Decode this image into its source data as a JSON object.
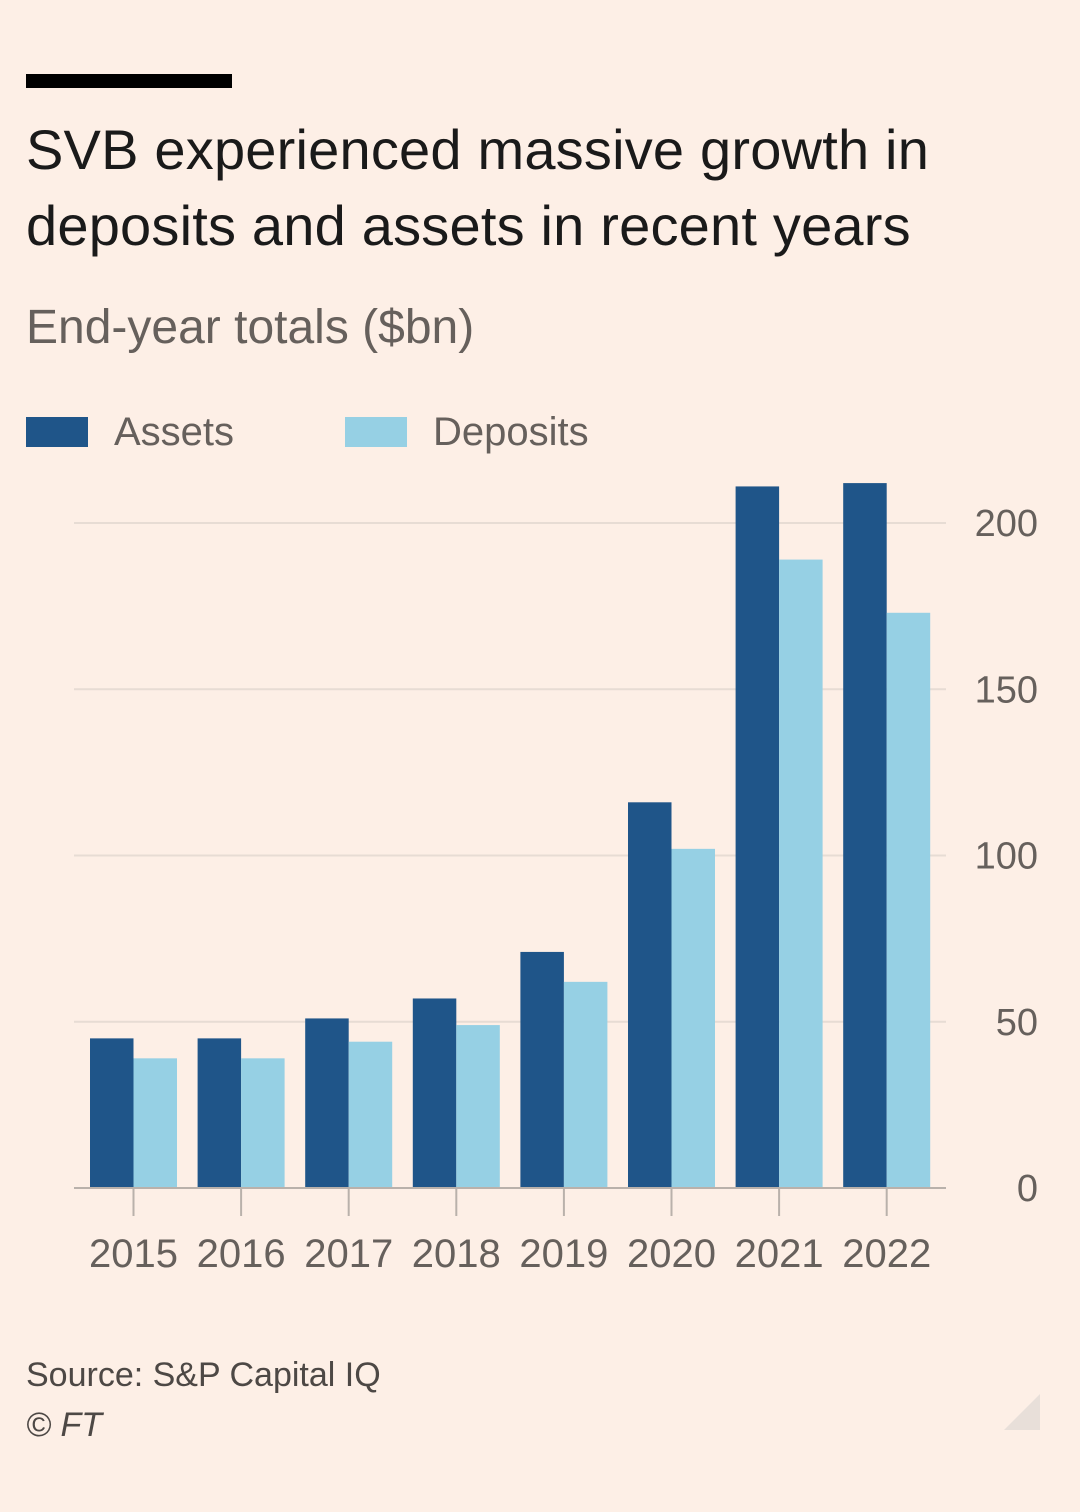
{
  "title": "SVB experienced massive growth in deposits and assets in recent years",
  "subtitle": "End-year totals ($bn)",
  "legend": [
    {
      "label": "Assets",
      "color": "#1f5589"
    },
    {
      "label": "Deposits",
      "color": "#96d0e4"
    }
  ],
  "source": "Source: S&P Capital IQ",
  "copyright": "© FT",
  "colors": {
    "background": "#fdefe6",
    "gridline": "#e7dcd4",
    "axis": "#b9b1ab",
    "tick_text": "#66605c",
    "assets": "#1f5589",
    "deposits": "#96d0e4"
  },
  "chart_data": {
    "type": "bar",
    "categories": [
      "2015",
      "2016",
      "2017",
      "2018",
      "2019",
      "2020",
      "2021",
      "2022"
    ],
    "series": [
      {
        "name": "Assets",
        "values": [
          45,
          45,
          51,
          57,
          71,
          116,
          211,
          212
        ]
      },
      {
        "name": "Deposits",
        "values": [
          39,
          39,
          44,
          49,
          62,
          102,
          189,
          173
        ]
      }
    ],
    "ylim": [
      0,
      200
    ],
    "yticks": [
      "0",
      "50",
      "100",
      "150",
      "200"
    ],
    "y_axis_position": "right",
    "grid": true,
    "legend_position": "top-left"
  }
}
